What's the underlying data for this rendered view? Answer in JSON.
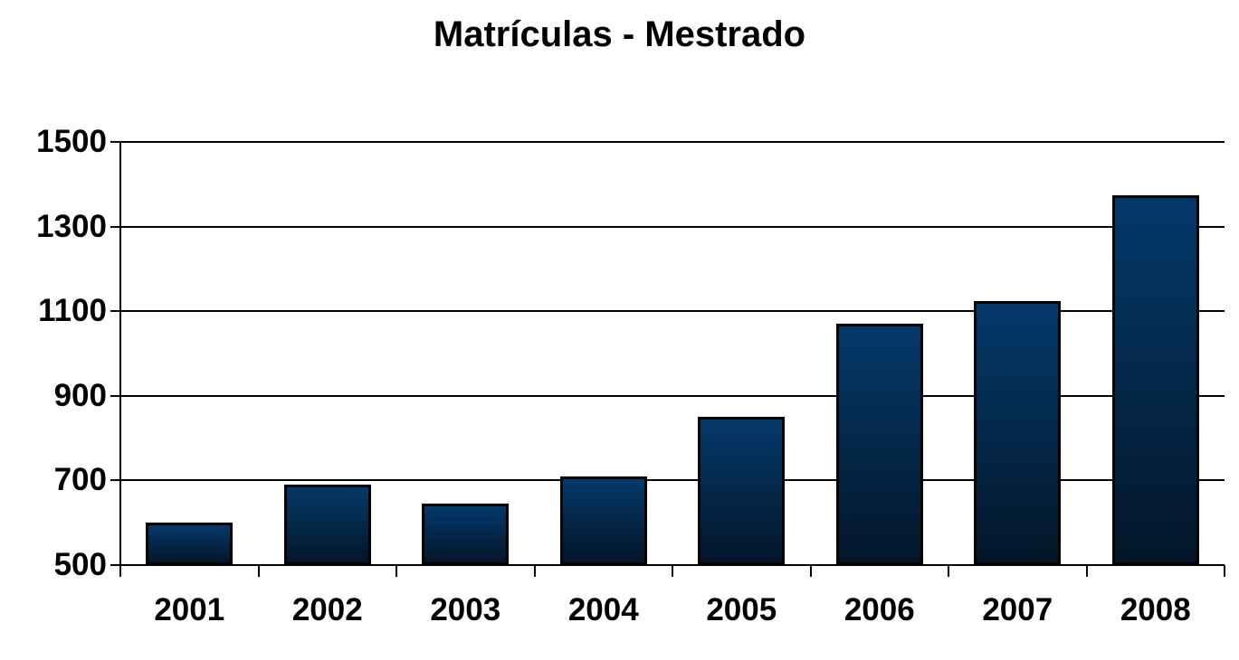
{
  "title": "Matrículas - Mestrado",
  "chart_data": {
    "type": "bar",
    "title": "Matrículas - Mestrado",
    "categories": [
      "2001",
      "2002",
      "2003",
      "2004",
      "2005",
      "2006",
      "2007",
      "2008"
    ],
    "values": [
      600,
      690,
      645,
      710,
      850,
      1070,
      1125,
      1375
    ],
    "xlabel": "",
    "ylabel": "",
    "ylim": [
      500,
      1500
    ],
    "yticks": [
      500,
      700,
      900,
      1100,
      1300,
      1500
    ],
    "grid": true,
    "legend": false,
    "background_color": "#ffffff",
    "text_color": "#000000",
    "axis_color": "#000000",
    "gridline_color": "#000000",
    "bar_border_color": "#000000",
    "bar_gradient_top": "#04396a",
    "bar_gradient_bottom": "#031629"
  }
}
